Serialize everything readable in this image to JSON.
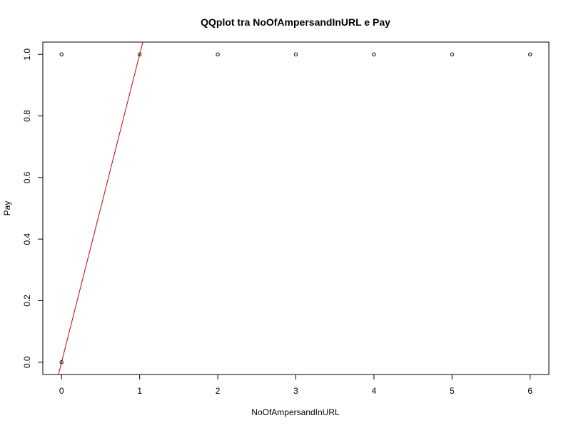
{
  "chart_data": {
    "type": "scatter",
    "title": "QQplot tra NoOfAmpersandInURL e Pay",
    "xlabel": "NoOfAmpersandInURL",
    "ylabel": "Pay",
    "xlim": [
      -0.24,
      6.24
    ],
    "ylim": [
      -0.04,
      1.04
    ],
    "x_ticks": [
      0,
      1,
      2,
      3,
      4,
      5,
      6
    ],
    "y_ticks": [
      0.0,
      0.2,
      0.4,
      0.6,
      0.8,
      1.0
    ],
    "x_tick_labels": [
      "0",
      "1",
      "2",
      "3",
      "4",
      "5",
      "6"
    ],
    "y_tick_labels": [
      "0.0",
      "0.2",
      "0.4",
      "0.6",
      "0.8",
      "1.0"
    ],
    "series": [
      {
        "x": [
          0,
          0,
          1,
          2,
          3,
          4,
          5,
          6
        ],
        "y": [
          0,
          1,
          1,
          1,
          1,
          1,
          1,
          1
        ],
        "marker": "open-circle",
        "color": "#000000"
      }
    ],
    "reference_line": {
      "intercept": 0,
      "slope": 1,
      "color": "#cc0000"
    },
    "grid": false,
    "legend": "none"
  }
}
